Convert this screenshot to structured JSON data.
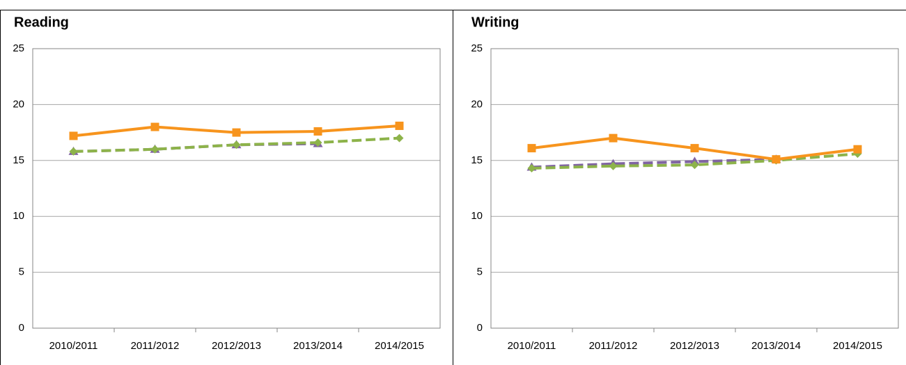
{
  "chart_data": [
    {
      "type": "line",
      "title": "Reading",
      "categories": [
        "2010/2011",
        "2011/2012",
        "2012/2013",
        "2013/2014",
        "2014/2015"
      ],
      "ylim": [
        0,
        25
      ],
      "yticks": [
        0,
        5,
        10,
        15,
        20,
        25
      ],
      "grid": true,
      "series": [
        {
          "color": "#f7941d",
          "marker": "square",
          "dashed": false,
          "values": [
            17.2,
            18.0,
            17.5,
            17.6,
            18.1
          ]
        },
        {
          "color": "#8db34a",
          "marker": "diamond",
          "dashed": true,
          "values": [
            15.8,
            16.0,
            16.4,
            16.6,
            17.0
          ]
        },
        {
          "color": "#8064a2",
          "marker": "triangle",
          "dashed": true,
          "values": [
            15.8,
            16.0,
            16.4,
            16.5,
            null
          ]
        }
      ]
    },
    {
      "type": "line",
      "title": "Writing",
      "categories": [
        "2010/2011",
        "2011/2012",
        "2012/2013",
        "2013/2014",
        "2014/2015"
      ],
      "ylim": [
        0,
        25
      ],
      "yticks": [
        0,
        5,
        10,
        15,
        20,
        25
      ],
      "grid": true,
      "series": [
        {
          "color": "#f7941d",
          "marker": "square",
          "dashed": false,
          "values": [
            16.1,
            17.0,
            16.1,
            15.1,
            16.0
          ]
        },
        {
          "color": "#8db34a",
          "marker": "diamond",
          "dashed": true,
          "values": [
            14.3,
            14.5,
            14.6,
            15.0,
            15.6
          ]
        },
        {
          "color": "#8064a2",
          "marker": "triangle",
          "dashed": true,
          "values": [
            14.4,
            14.7,
            14.9,
            15.1,
            null
          ]
        }
      ]
    }
  ]
}
